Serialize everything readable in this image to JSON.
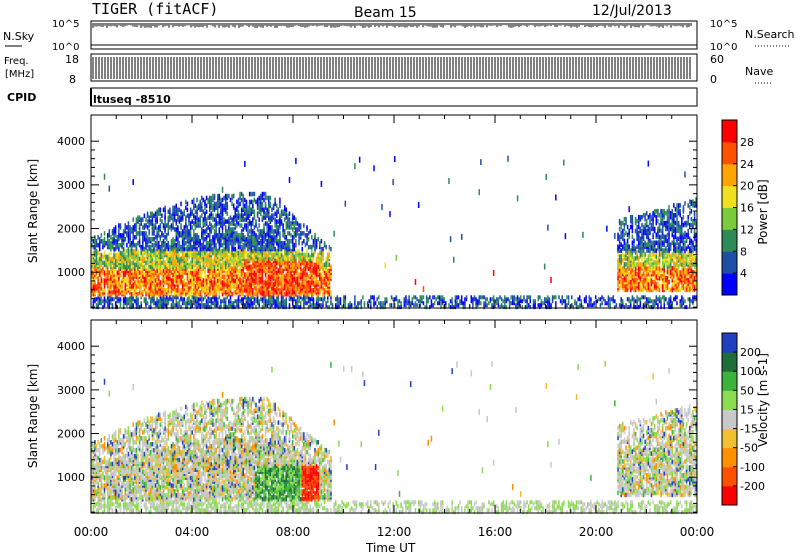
{
  "header": {
    "radar": "TIGER (fitACF)",
    "beam": "Beam 15",
    "date": "12/Jul/2013"
  },
  "strips": {
    "nsky": {
      "label": "N.Sky",
      "ticks_left": [
        "10^5",
        "10^0"
      ],
      "ticks_right": [
        "10^5",
        "10^0"
      ],
      "right_label": "N.Search"
    },
    "freq": {
      "label_line1": "Freq.",
      "label_line2": "[MHz]",
      "ticks_left": [
        "18",
        "8"
      ],
      "ticks_right": [
        "60",
        "0"
      ],
      "right_label": "Nave"
    },
    "cpid": {
      "label": "CPID",
      "value": "ltuseq -8510"
    }
  },
  "x_ticks": [
    "00:00",
    "04:00",
    "08:00",
    "12:00",
    "16:00",
    "20:00",
    "00:00"
  ],
  "x_label": "Time UT",
  "y_ticks": [
    "1000",
    "2000",
    "3000",
    "4000"
  ],
  "y_label": "Slant Range [km]",
  "chart_data": [
    {
      "type": "heatmap",
      "title": "",
      "xlabel": "Time UT",
      "ylabel": "Slant Range [km]",
      "xlim": [
        "00:00",
        "24:00"
      ],
      "ylim": [
        180,
        4600
      ],
      "colorbar": {
        "label": "Power [dB]",
        "ticks": [
          4,
          8,
          12,
          16,
          20,
          24,
          28
        ],
        "colors": [
          "#0000ff",
          "#1e4fa8",
          "#2e8b57",
          "#7acc3c",
          "#f0e020",
          "#ffa500",
          "#ff5000",
          "#ff0000"
        ]
      },
      "regions": [
        {
          "t_start": 0.0,
          "t_end": 9.5,
          "range_min": 500,
          "range_max": 3500,
          "dominant": "12-28 dB"
        },
        {
          "t_start": 9.5,
          "t_end": 24.0,
          "range_min": 200,
          "range_max": 500,
          "dominant": "4-12 dB"
        },
        {
          "t_start": 20.8,
          "t_end": 24.0,
          "range_min": 600,
          "range_max": 3000,
          "dominant": "4-24 dB"
        }
      ]
    },
    {
      "type": "heatmap",
      "title": "",
      "xlabel": "Time UT",
      "ylabel": "Slant Range [km]",
      "xlim": [
        "00:00",
        "24:00"
      ],
      "ylim": [
        180,
        4600
      ],
      "colorbar": {
        "label": "Velocity [m s-1]",
        "ticks": [
          200,
          100,
          50,
          15,
          -15,
          -50,
          -100,
          -200
        ],
        "colors": [
          "#2040c0",
          "#1e6e3c",
          "#3cb43c",
          "#8cdc50",
          "#c8c8c8",
          "#f0c030",
          "#ff9000",
          "#ff5000",
          "#ff0000"
        ]
      },
      "regions": [
        {
          "t_start": 0.0,
          "t_end": 9.5,
          "range_min": 500,
          "range_max": 3500,
          "dominant": "-15 to 50 m/s"
        },
        {
          "t_start": 6.5,
          "t_end": 9.0,
          "range_min": 600,
          "range_max": 1300,
          "dominant": "50 to -200 m/s"
        },
        {
          "t_start": 9.5,
          "t_end": 24.0,
          "range_min": 200,
          "range_max": 500,
          "dominant": "-15 to 50 m/s"
        },
        {
          "t_start": 20.8,
          "t_end": 24.0,
          "range_min": 600,
          "range_max": 3000,
          "dominant": "-50 to 15 m/s"
        }
      ]
    }
  ]
}
